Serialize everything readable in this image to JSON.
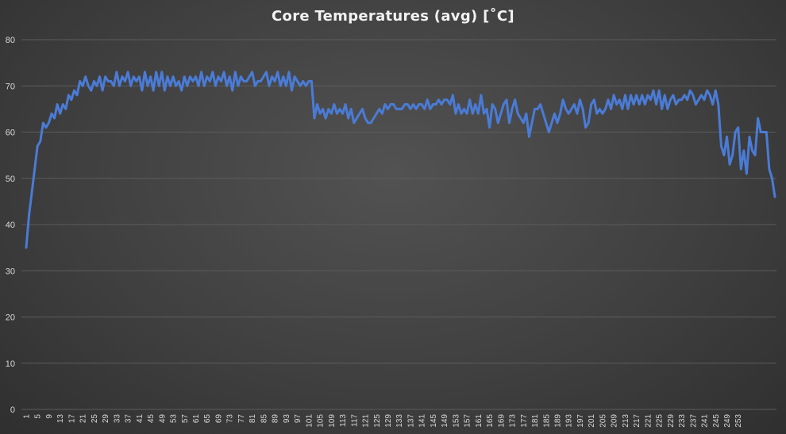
{
  "chart_data": {
    "type": "line",
    "title": "Core Temperatures (avg) [˚C]",
    "xlabel": "",
    "ylabel": "",
    "ylim": [
      0,
      80
    ],
    "yticks": [
      0,
      10,
      20,
      30,
      40,
      50,
      60,
      70,
      80
    ],
    "x_tick_labels": [
      "1",
      "5",
      "9",
      "13",
      "17",
      "21",
      "25",
      "29",
      "33",
      "37",
      "41",
      "45",
      "49",
      "53",
      "57",
      "61",
      "65",
      "69",
      "73",
      "77",
      "81",
      "85",
      "89",
      "93",
      "97",
      "101",
      "105",
      "109",
      "113",
      "117",
      "121",
      "125",
      "129",
      "133",
      "137",
      "141",
      "145",
      "149",
      "153",
      "157",
      "161",
      "165",
      "169",
      "173",
      "177",
      "181",
      "185",
      "189",
      "193",
      "197",
      "201",
      "205",
      "209",
      "213",
      "217",
      "221",
      "225",
      "229",
      "233",
      "237",
      "241",
      "245",
      "249",
      "253"
    ],
    "grid": true,
    "legend": "none",
    "line_color": "#4a7bd6",
    "series": [
      {
        "values": [
          35,
          42,
          47,
          52,
          57,
          58,
          62,
          61,
          62,
          64,
          63,
          66,
          64,
          66,
          65,
          68,
          67,
          69,
          68,
          71,
          70,
          72,
          70,
          69,
          71,
          70,
          72,
          69,
          72,
          71,
          71,
          70,
          73,
          70,
          72,
          71,
          73,
          70,
          72,
          71,
          72,
          69,
          73,
          70,
          72,
          69,
          73,
          70,
          73,
          69,
          72,
          70,
          72,
          70,
          71,
          69,
          72,
          70,
          72,
          71,
          72,
          70,
          73,
          70,
          72,
          71,
          73,
          70,
          72,
          71,
          73,
          70,
          72,
          69,
          73,
          70,
          72,
          71,
          71,
          72,
          73,
          70,
          71,
          71,
          72,
          73,
          70,
          72,
          71,
          73,
          70,
          72,
          70,
          73,
          69,
          72,
          71,
          70,
          71,
          70,
          71,
          71,
          63,
          66,
          64,
          65,
          63,
          65,
          64,
          66,
          64,
          65,
          64,
          66,
          63,
          65,
          62,
          63,
          64,
          65,
          63,
          62,
          62,
          63,
          64,
          65,
          64,
          66,
          65,
          66,
          66,
          65,
          65,
          65,
          66,
          66,
          65,
          66,
          65,
          66,
          66,
          65,
          67,
          65,
          66,
          66,
          67,
          66,
          67,
          67,
          66,
          68,
          64,
          66,
          64,
          65,
          64,
          67,
          64,
          66,
          64,
          68,
          64,
          65,
          61,
          66,
          65,
          62,
          64,
          66,
          67,
          62,
          65,
          67,
          64,
          63,
          62,
          64,
          59,
          62,
          65,
          65,
          66,
          64,
          62,
          60,
          62,
          64,
          62,
          64,
          67,
          65,
          64,
          65,
          66,
          64,
          67,
          65,
          61,
          62,
          66,
          67,
          64,
          65,
          64,
          65,
          67,
          65,
          68,
          66,
          67,
          65,
          68,
          65,
          68,
          66,
          68,
          66,
          68,
          66,
          68,
          67,
          69,
          66,
          69,
          65,
          68,
          65,
          67,
          68,
          66,
          67,
          67,
          68,
          67,
          69,
          68,
          66,
          67,
          68,
          67,
          69,
          68,
          66,
          69,
          66,
          57,
          55,
          59,
          53,
          55,
          60,
          61,
          52,
          56,
          51,
          59,
          56,
          55,
          63,
          60,
          60,
          60,
          52,
          50,
          46
        ]
      }
    ]
  }
}
